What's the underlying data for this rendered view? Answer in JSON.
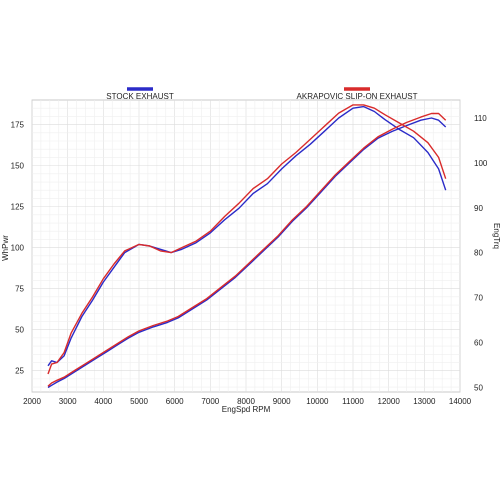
{
  "chart_data": {
    "type": "line",
    "title": "",
    "xlabel": "EngSpd  RPM",
    "ylabel_left": "WhPwr",
    "ylabel_right": "EngTrq",
    "xlim": [
      2000,
      14000
    ],
    "ylim_left": [
      12,
      190
    ],
    "ylim_right": [
      49,
      114
    ],
    "x_ticks": [
      "2000",
      "3000",
      "4000",
      "5000",
      "6000",
      "7000",
      "8000",
      "9000",
      "10000",
      "11000",
      "12000",
      "13000",
      "14000"
    ],
    "y_left_ticks": [
      "25",
      "50",
      "75",
      "100",
      "125",
      "150",
      "175"
    ],
    "y_right_ticks": [
      "50",
      "60",
      "70",
      "80",
      "90",
      "100",
      "110"
    ],
    "grid": true,
    "legend_position": "top",
    "colors": {
      "stock": "#2b2bc8",
      "akrapovic": "#d92b2b"
    },
    "series": [
      {
        "name": "STOCK EXHAUST",
        "color": "#2b2bc8",
        "power_rpm": [
          2450,
          2550,
          2700,
          2900,
          3100,
          3400,
          3700,
          4000,
          4300,
          4600,
          5000,
          5300,
          5600,
          5900,
          6200,
          6600,
          7000,
          7400,
          7800,
          8200,
          8600,
          9000,
          9400,
          9800,
          10200,
          10600,
          11000,
          11300,
          11600,
          11900,
          12300,
          12700,
          13100,
          13400,
          13600
        ],
        "power_whp": [
          28,
          31,
          30,
          34,
          45,
          58,
          68,
          79,
          88,
          97,
          102,
          101,
          99,
          97,
          99,
          103,
          109,
          117,
          124,
          133,
          139,
          148,
          156,
          163,
          171,
          179,
          185,
          186,
          183,
          178,
          172,
          167,
          158,
          148,
          135
        ],
        "torque_rpm": [
          2450,
          2550,
          2700,
          2900,
          3200,
          3500,
          3800,
          4100,
          4400,
          4700,
          5000,
          5400,
          5800,
          6100,
          6500,
          6900,
          7300,
          7700,
          8100,
          8500,
          8900,
          9300,
          9700,
          10100,
          10500,
          10900,
          11300,
          11700,
          12100,
          12500,
          12900,
          13200,
          13400,
          13600
        ],
        "torque_ft": [
          50,
          50.5,
          51.2,
          52,
          53.5,
          55,
          56.5,
          58,
          59.5,
          61,
          62.3,
          63.5,
          64.5,
          65.5,
          67.5,
          69.5,
          72,
          74.5,
          77.5,
          80.5,
          83.5,
          87,
          90,
          93.5,
          97,
          100,
          103,
          105.5,
          107,
          108.3,
          109.5,
          110,
          109.5,
          108
        ]
      },
      {
        "name": "AKRAPOVIC SLIP-ON EXHAUST",
        "color": "#d92b2b",
        "power_rpm": [
          2450,
          2550,
          2700,
          2900,
          3100,
          3400,
          3700,
          4000,
          4300,
          4600,
          5000,
          5300,
          5600,
          5900,
          6200,
          6600,
          7000,
          7400,
          7800,
          8200,
          8600,
          9000,
          9400,
          9800,
          10200,
          10600,
          11000,
          11300,
          11600,
          11900,
          12300,
          12700,
          13100,
          13400,
          13600
        ],
        "power_whp": [
          23,
          29,
          30,
          36,
          48,
          60,
          70,
          81,
          90,
          98,
          102,
          101,
          98,
          97,
          100,
          104,
          110,
          119,
          127,
          136,
          142,
          151,
          158,
          166,
          174,
          182,
          187,
          187,
          185,
          181,
          176,
          171,
          164,
          155,
          142
        ],
        "torque_rpm": [
          2450,
          2550,
          2700,
          2900,
          3200,
          3500,
          3800,
          4100,
          4400,
          4700,
          5000,
          5400,
          5800,
          6100,
          6500,
          6900,
          7300,
          7700,
          8100,
          8500,
          8900,
          9300,
          9700,
          10100,
          10500,
          10900,
          11300,
          11700,
          12100,
          12500,
          12900,
          13200,
          13400,
          13600
        ],
        "torque_ft": [
          50.3,
          51,
          51.6,
          52.3,
          53.8,
          55.3,
          56.8,
          58.3,
          59.8,
          61.3,
          62.6,
          63.8,
          64.8,
          65.8,
          67.8,
          69.8,
          72.3,
          74.8,
          77.8,
          80.8,
          83.8,
          87.3,
          90.3,
          93.8,
          97.3,
          100.3,
          103.3,
          105.8,
          107.5,
          109,
          110.2,
          111,
          111,
          109.5
        ]
      }
    ]
  }
}
